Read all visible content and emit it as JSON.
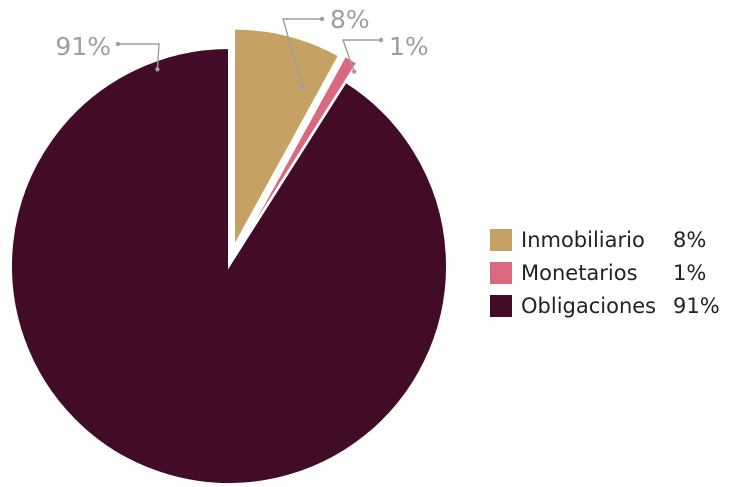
{
  "chart_data": {
    "type": "pie",
    "slices": [
      {
        "label": "Inmobiliario",
        "value": 8,
        "display": "8%",
        "color": "#c5a164"
      },
      {
        "label": "Monetarios",
        "value": 1,
        "display": "1%",
        "color": "#d9697f"
      },
      {
        "label": "Obligaciones",
        "value": 91,
        "display": "91%",
        "color": "#420b27"
      }
    ],
    "legend_placement": "right"
  }
}
